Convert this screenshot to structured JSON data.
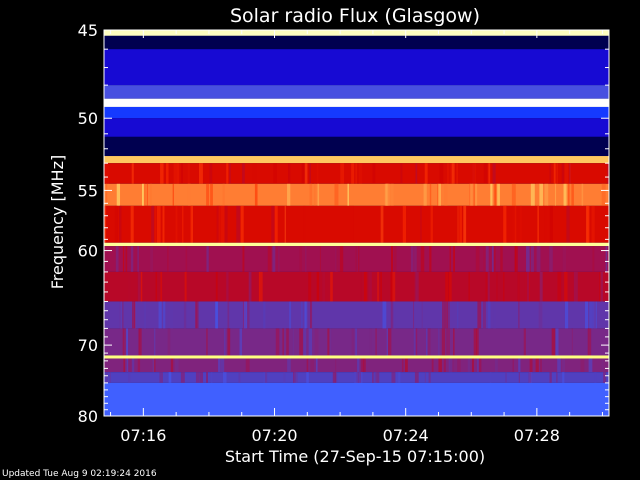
{
  "chart_data": {
    "type": "heatmap",
    "title": "Solar radio Flux (Glasgow)",
    "xlabel": "Start Time (27-Sep-15 07:15:00)",
    "ylabel": "Frequency [MHz]",
    "x_ticks": [
      {
        "label": "07:16",
        "minutes": 16
      },
      {
        "label": "07:20",
        "minutes": 20
      },
      {
        "label": "07:24",
        "minutes": 24
      },
      {
        "label": "07:28",
        "minutes": 28
      }
    ],
    "xlim_minutes": [
      14.8,
      30.2
    ],
    "y_ticks": [
      45,
      50,
      55,
      60,
      70,
      80
    ],
    "ylim": [
      45,
      80
    ],
    "y_scale": "reciprocal",
    "colormap": [
      "#000050",
      "#1a00c8",
      "#0a30ff",
      "#4060ff",
      "#5040c0",
      "#a01050",
      "#d00000",
      "#ff3000",
      "#ff9040",
      "#ffff80",
      "#ffffff"
    ],
    "bands": [
      {
        "f0": 45.0,
        "f1": 45.3,
        "level": 0.95
      },
      {
        "f0": 45.3,
        "f1": 46.0,
        "level": 0.0
      },
      {
        "f0": 46.0,
        "f1": 48.0,
        "level": 0.12
      },
      {
        "f0": 48.0,
        "f1": 48.8,
        "level": 0.35
      },
      {
        "f0": 48.8,
        "f1": 49.3,
        "level": 1.0
      },
      {
        "f0": 49.3,
        "f1": 50.0,
        "level": 0.22
      },
      {
        "f0": 50.0,
        "f1": 51.2,
        "level": 0.12
      },
      {
        "f0": 51.2,
        "f1": 52.5,
        "level": 0.0
      },
      {
        "f0": 52.5,
        "f1": 53.0,
        "level": 0.85
      },
      {
        "f0": 53.0,
        "f1": 54.5,
        "level": 0.62
      },
      {
        "f0": 54.5,
        "f1": 56.2,
        "level": 0.78
      },
      {
        "f0": 56.2,
        "f1": 59.3,
        "level": 0.62
      },
      {
        "f0": 59.3,
        "f1": 59.6,
        "level": 0.92
      },
      {
        "f0": 59.6,
        "f1": 62.0,
        "level": 0.5
      },
      {
        "f0": 62.0,
        "f1": 65.0,
        "level": 0.55
      },
      {
        "f0": 65.0,
        "f1": 68.0,
        "level": 0.42
      },
      {
        "f0": 68.0,
        "f1": 71.3,
        "level": 0.45
      },
      {
        "f0": 71.3,
        "f1": 71.7,
        "level": 0.9
      },
      {
        "f0": 71.7,
        "f1": 73.5,
        "level": 0.46
      },
      {
        "f0": 73.5,
        "f1": 75.0,
        "level": 0.4
      },
      {
        "f0": 75.0,
        "f1": 80.0,
        "level": 0.3
      }
    ]
  },
  "footer": "Updated Tue Aug  9 02:19:24 2016"
}
